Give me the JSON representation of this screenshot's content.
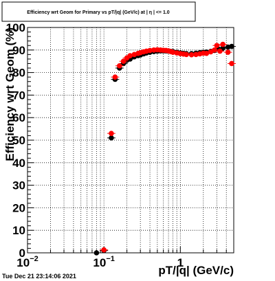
{
  "title": "Efficiency wrt Geom for Primary vs pT/|q| (GeV/c) at | η | <= 1.0",
  "footer": "Tue Dec 21 23:14:06 2021",
  "colors": {
    "series_black": "#000000",
    "series_red": "#ff0000",
    "grid": "#000000"
  },
  "chart_data": {
    "type": "scatter",
    "xlabel": "pT/|q| (GeV/c)",
    "ylabel": "Efficiency wrt Geom (%)",
    "x_scale": "log",
    "xlim": [
      0.01,
      5.0
    ],
    "ylim": [
      0,
      100
    ],
    "grid": true,
    "x_ticks": [
      {
        "value": 0.01,
        "base": "10",
        "exp": "−2"
      },
      {
        "value": 0.1,
        "base": "10",
        "exp": "−1"
      },
      {
        "value": 1,
        "base": "1",
        "exp": ""
      }
    ],
    "y_ticks": [
      "0",
      "10",
      "20",
      "30",
      "40",
      "50",
      "60",
      "70",
      "80",
      "90",
      "100"
    ],
    "series": [
      {
        "color": "black",
        "points": [
          [
            0.08,
            0
          ],
          [
            0.1,
            1
          ],
          [
            0.125,
            51
          ],
          [
            0.14,
            77
          ],
          [
            0.16,
            82
          ],
          [
            0.18,
            84
          ],
          [
            0.2,
            85.5
          ],
          [
            0.22,
            86
          ],
          [
            0.25,
            87
          ],
          [
            0.28,
            87.5
          ],
          [
            0.3,
            87.8
          ],
          [
            0.33,
            88.3
          ],
          [
            0.36,
            88.7
          ],
          [
            0.4,
            89
          ],
          [
            0.45,
            89.3
          ],
          [
            0.5,
            89.5
          ],
          [
            0.55,
            89.6
          ],
          [
            0.6,
            89.6
          ],
          [
            0.65,
            89.6
          ],
          [
            0.7,
            89.5
          ],
          [
            0.75,
            89.4
          ],
          [
            0.8,
            89.3
          ],
          [
            0.9,
            89
          ],
          [
            1.0,
            88.7
          ],
          [
            1.1,
            88.5
          ],
          [
            1.2,
            88.4
          ],
          [
            1.4,
            88.4
          ],
          [
            1.6,
            88.6
          ],
          [
            1.8,
            88.8
          ],
          [
            2.0,
            89
          ],
          [
            2.2,
            89.1
          ],
          [
            2.5,
            89.4
          ],
          [
            2.8,
            89.8
          ],
          [
            3.2,
            90.3
          ],
          [
            3.6,
            90.8
          ],
          [
            4.2,
            91.3
          ],
          [
            4.7,
            91.6
          ]
        ]
      },
      {
        "color": "red",
        "points": [
          [
            0.1,
            1.3
          ],
          [
            0.125,
            53
          ],
          [
            0.14,
            78
          ],
          [
            0.16,
            83
          ],
          [
            0.18,
            85
          ],
          [
            0.2,
            86.5
          ],
          [
            0.22,
            87.5
          ],
          [
            0.25,
            88
          ],
          [
            0.28,
            88.5
          ],
          [
            0.3,
            88.8
          ],
          [
            0.33,
            89.2
          ],
          [
            0.36,
            89.5
          ],
          [
            0.4,
            89.8
          ],
          [
            0.45,
            90
          ],
          [
            0.5,
            90.1
          ],
          [
            0.55,
            90
          ],
          [
            0.6,
            89.9
          ],
          [
            0.65,
            89.8
          ],
          [
            0.7,
            89.6
          ],
          [
            0.75,
            89.3
          ],
          [
            0.8,
            89
          ],
          [
            0.9,
            88.7
          ],
          [
            1.0,
            88.4
          ],
          [
            1.1,
            88.2
          ],
          [
            1.2,
            88
          ],
          [
            1.4,
            87.9
          ],
          [
            1.6,
            88
          ],
          [
            1.8,
            88.3
          ],
          [
            2.0,
            88.6
          ],
          [
            2.2,
            88.5
          ],
          [
            2.5,
            89.2
          ],
          [
            2.8,
            90
          ],
          [
            3.0,
            92
          ],
          [
            3.3,
            89.5
          ],
          [
            3.6,
            92.5
          ],
          [
            4.2,
            89
          ],
          [
            4.7,
            84
          ]
        ]
      }
    ]
  }
}
